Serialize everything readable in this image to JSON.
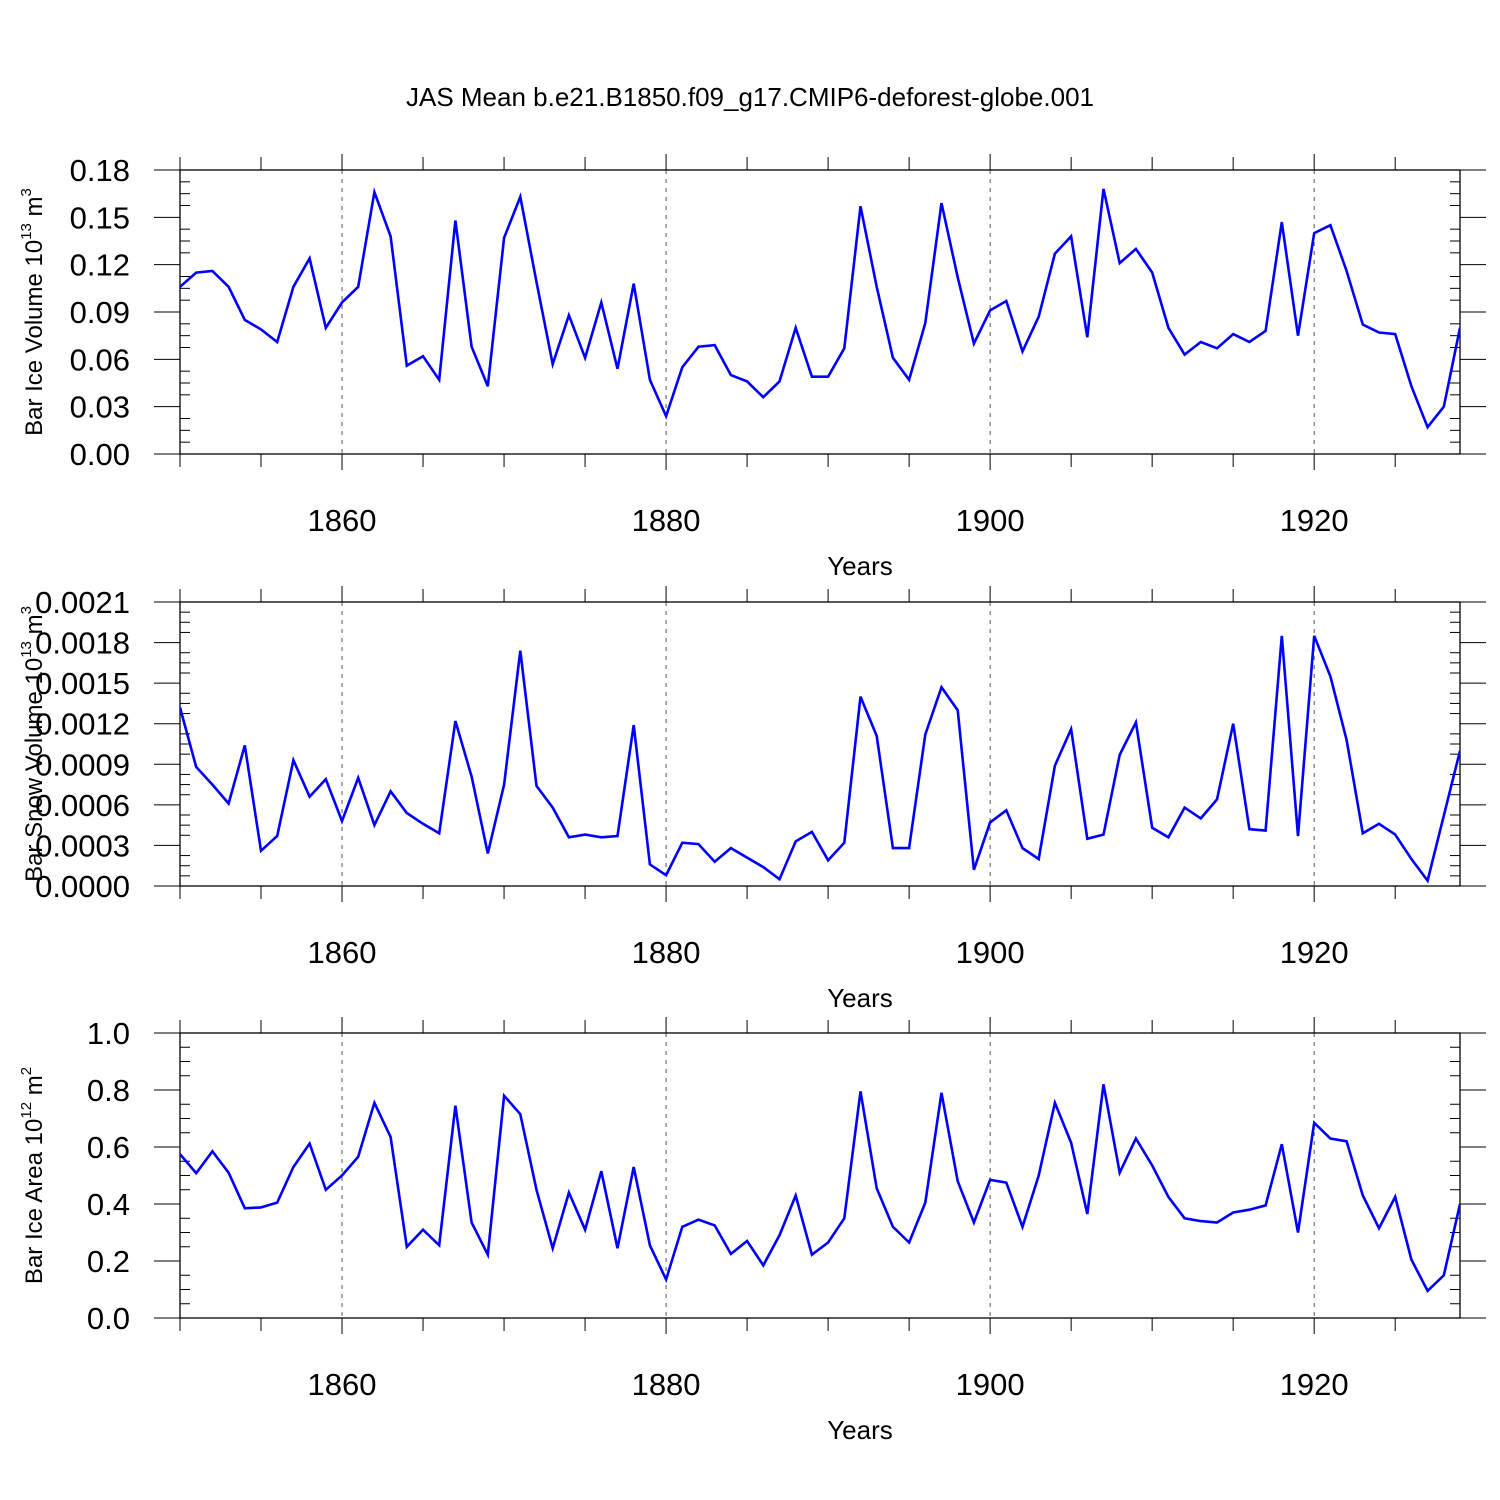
{
  "title": "JAS Mean b.e21.B1850.f09_g17.CMIP6-deforest-globe.001",
  "chart_data": [
    {
      "type": "line",
      "title": "JAS Mean b.e21.B1850.f09_g17.CMIP6-deforest-globe.001",
      "xlabel": "Years",
      "ylabel_main": "Bar Ice Volume 10",
      "ylabel_exp": "13",
      "ylabel_unit": " m",
      "ylabel_unit_exp": "3",
      "xlim": [
        1850,
        1929
      ],
      "ylim": [
        0,
        0.18
      ],
      "x_ticks": [
        "1860",
        "1880",
        "1900",
        "1920"
      ],
      "y_ticks": [
        "0.00",
        "0.03",
        "0.06",
        "0.09",
        "0.12",
        "0.15",
        "0.18"
      ],
      "x_start": 1850,
      "color": "#0000ff",
      "series": [
        {
          "name": "Bar Ice Volume",
          "values": [
            0.106,
            0.115,
            0.116,
            0.106,
            0.085,
            0.079,
            0.071,
            0.106,
            0.124,
            0.08,
            0.096,
            0.106,
            0.166,
            0.138,
            0.056,
            0.062,
            0.047,
            0.148,
            0.068,
            0.043,
            0.137,
            0.163,
            0.109,
            0.057,
            0.088,
            0.061,
            0.096,
            0.054,
            0.108,
            0.047,
            0.024,
            0.055,
            0.068,
            0.069,
            0.05,
            0.046,
            0.036,
            0.046,
            0.08,
            0.049,
            0.049,
            0.067,
            0.157,
            0.106,
            0.061,
            0.047,
            0.083,
            0.159,
            0.112,
            0.07,
            0.091,
            0.097,
            0.065,
            0.087,
            0.127,
            0.138,
            0.074,
            0.168,
            0.121,
            0.13,
            0.115,
            0.08,
            0.063,
            0.071,
            0.067,
            0.076,
            0.071,
            0.078,
            0.147,
            0.075,
            0.14,
            0.145,
            0.116,
            0.082,
            0.077,
            0.076,
            0.043,
            0.017,
            0.03,
            0.08
          ]
        }
      ]
    },
    {
      "type": "line",
      "xlabel": "Years",
      "ylabel_main": "Bar Snow Volume 10",
      "ylabel_exp": "13",
      "ylabel_unit": " m",
      "ylabel_unit_exp": "3",
      "xlim": [
        1850,
        1929
      ],
      "ylim": [
        0,
        0.0021
      ],
      "x_ticks": [
        "1860",
        "1880",
        "1900",
        "1920"
      ],
      "y_ticks": [
        "0.0000",
        "0.0003",
        "0.0006",
        "0.0009",
        "0.0012",
        "0.0015",
        "0.0018",
        "0.0021"
      ],
      "x_start": 1850,
      "color": "#0000ff",
      "series": [
        {
          "name": "Bar Snow Volume",
          "values": [
            0.00132,
            0.00088,
            0.00075,
            0.00061,
            0.00104,
            0.00026,
            0.00037,
            0.00093,
            0.00066,
            0.00079,
            0.00048,
            0.0008,
            0.00045,
            0.0007,
            0.00054,
            0.00046,
            0.00039,
            0.00122,
            0.00081,
            0.00024,
            0.00075,
            0.00174,
            0.00074,
            0.00058,
            0.00036,
            0.00038,
            0.00036,
            0.00037,
            0.00119,
            0.00016,
            8e-05,
            0.00032,
            0.00031,
            0.00018,
            0.00028,
            0.00021,
            0.00014,
            5e-05,
            0.00033,
            0.0004,
            0.00019,
            0.00032,
            0.0014,
            0.00111,
            0.00028,
            0.00028,
            0.00112,
            0.00147,
            0.0013,
            0.00012,
            0.00047,
            0.00056,
            0.00028,
            0.0002,
            0.00089,
            0.00116,
            0.00035,
            0.00038,
            0.00097,
            0.00121,
            0.00043,
            0.00036,
            0.00058,
            0.0005,
            0.00064,
            0.0012,
            0.00042,
            0.00041,
            0.00185,
            0.00037,
            0.00185,
            0.00155,
            0.00108,
            0.00039,
            0.00046,
            0.00038,
            0.0002,
            4e-05,
            0.00052,
            0.001
          ]
        }
      ]
    },
    {
      "type": "line",
      "xlabel": "Years",
      "ylabel_main": "Bar Ice Area 10",
      "ylabel_exp": "12",
      "ylabel_unit": " m",
      "ylabel_unit_exp": "2",
      "xlim": [
        1850,
        1929
      ],
      "ylim": [
        0,
        1.0
      ],
      "x_ticks": [
        "1860",
        "1880",
        "1900",
        "1920"
      ],
      "y_ticks": [
        "0.0",
        "0.2",
        "0.4",
        "0.6",
        "0.8",
        "1.0"
      ],
      "x_start": 1850,
      "color": "#0000ff",
      "series": [
        {
          "name": "Bar Ice Area",
          "values": [
            0.575,
            0.508,
            0.585,
            0.51,
            0.385,
            0.388,
            0.405,
            0.53,
            0.612,
            0.45,
            0.5,
            0.566,
            0.755,
            0.635,
            0.25,
            0.31,
            0.255,
            0.745,
            0.335,
            0.222,
            0.78,
            0.715,
            0.45,
            0.245,
            0.44,
            0.31,
            0.515,
            0.245,
            0.53,
            0.255,
            0.135,
            0.32,
            0.345,
            0.325,
            0.225,
            0.27,
            0.185,
            0.29,
            0.43,
            0.222,
            0.265,
            0.35,
            0.795,
            0.455,
            0.32,
            0.265,
            0.405,
            0.79,
            0.48,
            0.335,
            0.485,
            0.475,
            0.32,
            0.5,
            0.755,
            0.615,
            0.365,
            0.82,
            0.51,
            0.63,
            0.535,
            0.425,
            0.35,
            0.34,
            0.335,
            0.37,
            0.38,
            0.395,
            0.61,
            0.3,
            0.685,
            0.63,
            0.62,
            0.43,
            0.315,
            0.425,
            0.205,
            0.095,
            0.15,
            0.4
          ]
        }
      ]
    }
  ]
}
